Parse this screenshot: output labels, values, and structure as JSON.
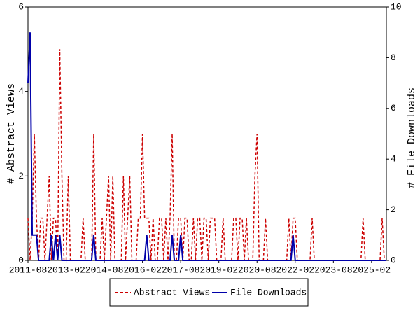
{
  "chart_data": {
    "type": "line",
    "categories": [
      "2011-08",
      "2011-09",
      "2011-10",
      "2011-11",
      "2011-12",
      "2012-01",
      "2012-02",
      "2012-03",
      "2012-04",
      "2012-05",
      "2012-06",
      "2012-07",
      "2012-08",
      "2012-09",
      "2012-10",
      "2012-11",
      "2012-12",
      "2013-01",
      "2013-02",
      "2013-03",
      "2013-04",
      "2013-05",
      "2013-06",
      "2013-07",
      "2013-08",
      "2013-09",
      "2013-10",
      "2013-11",
      "2013-12",
      "2014-01",
      "2014-02",
      "2014-03",
      "2014-04",
      "2014-05",
      "2014-06",
      "2014-07",
      "2014-08",
      "2014-09",
      "2014-10",
      "2014-11",
      "2014-12",
      "2015-01",
      "2015-02",
      "2015-03",
      "2015-04",
      "2015-05",
      "2015-06",
      "2015-07",
      "2015-08",
      "2015-09",
      "2015-10",
      "2015-11",
      "2015-12",
      "2016-01",
      "2016-02",
      "2016-03",
      "2016-04",
      "2016-05",
      "2016-06",
      "2016-07",
      "2016-08",
      "2016-09",
      "2016-10",
      "2016-11",
      "2016-12",
      "2017-01",
      "2017-02",
      "2017-03",
      "2017-04",
      "2017-05",
      "2017-06",
      "2017-07",
      "2017-08",
      "2017-09",
      "2017-10",
      "2017-11",
      "2017-12",
      "2018-01",
      "2018-02",
      "2018-03",
      "2018-04",
      "2018-05",
      "2018-06",
      "2018-07",
      "2018-08",
      "2018-09",
      "2018-10",
      "2018-11",
      "2018-12",
      "2019-01",
      "2019-02",
      "2019-03",
      "2019-04",
      "2019-05",
      "2019-06",
      "2019-07",
      "2019-08",
      "2019-09",
      "2019-10",
      "2019-11",
      "2019-12",
      "2020-01",
      "2020-02",
      "2020-03",
      "2020-04",
      "2020-05",
      "2020-06",
      "2020-07",
      "2020-08",
      "2020-09",
      "2020-10",
      "2020-11",
      "2020-12",
      "2021-01",
      "2021-02",
      "2021-03",
      "2021-04",
      "2021-05",
      "2021-06",
      "2021-07",
      "2021-08",
      "2021-09",
      "2021-10",
      "2021-11",
      "2021-12",
      "2022-01",
      "2022-02",
      "2022-03",
      "2022-04",
      "2022-05",
      "2022-06",
      "2022-07",
      "2022-08",
      "2022-09",
      "2022-10",
      "2022-11",
      "2022-12",
      "2023-01",
      "2023-02",
      "2023-03",
      "2023-04",
      "2023-05",
      "2023-06",
      "2023-07",
      "2023-08",
      "2023-09",
      "2023-10",
      "2023-11",
      "2023-12",
      "2024-01",
      "2024-02",
      "2024-03",
      "2024-04",
      "2024-05",
      "2024-06",
      "2024-07",
      "2024-08",
      "2024-09",
      "2024-10",
      "2024-11",
      "2024-12",
      "2025-01",
      "2025-02",
      "2025-03",
      "2025-04",
      "2025-05",
      "2025-06",
      "2025-07",
      "2025-08",
      "2025-09"
    ],
    "xticks": [
      "2011-08",
      "2013-02",
      "2014-08",
      "2016-02",
      "2017-08",
      "2019-02",
      "2020-08",
      "2022-02",
      "2023-08",
      "2025-02"
    ],
    "ylabel": "# Abstract Views",
    "y2label": "# File Downloads",
    "ylim": [
      0,
      6
    ],
    "yticks": [
      0,
      2,
      4,
      6
    ],
    "y2lim": [
      0,
      10
    ],
    "y2ticks": [
      0,
      2,
      4,
      6,
      8,
      10
    ],
    "series": [
      {
        "name": "Abstract Views",
        "color": "#cc0000",
        "dashed": true,
        "values": [
          1,
          0,
          1,
          3,
          1,
          0,
          1,
          1,
          0,
          1,
          2,
          0,
          1,
          1,
          0,
          5,
          2,
          0,
          0,
          2,
          0,
          0,
          0,
          0,
          0,
          0,
          1,
          0,
          0,
          0,
          0,
          3,
          0,
          0,
          0,
          1,
          0,
          1,
          2,
          0,
          2,
          0,
          0,
          0,
          0,
          2,
          0,
          1,
          2,
          0,
          0,
          0,
          1,
          1,
          3,
          1,
          1,
          1,
          0,
          1,
          0,
          0,
          1,
          1,
          0,
          1,
          0,
          1,
          3,
          0,
          0,
          1,
          1,
          0,
          1,
          1,
          0,
          0,
          1,
          0,
          1,
          1,
          0,
          1,
          1,
          0,
          1,
          1,
          1,
          0,
          0,
          0,
          1,
          0,
          0,
          0,
          0,
          1,
          1,
          0,
          1,
          1,
          0,
          1,
          0,
          0,
          0,
          2,
          3,
          0,
          0,
          0,
          1,
          0,
          0,
          0,
          0,
          0,
          0,
          0,
          0,
          0,
          0,
          1,
          0,
          1,
          1,
          0,
          0,
          0,
          0,
          0,
          0,
          0,
          1,
          0,
          0,
          0,
          0,
          0,
          0,
          0,
          0,
          0,
          0,
          0,
          0,
          0,
          0,
          0,
          0,
          0,
          0,
          0,
          0,
          0,
          0,
          0,
          1,
          0,
          0,
          0,
          0,
          0,
          0,
          0,
          0,
          1,
          0,
          0
        ]
      },
      {
        "name": "File Downloads",
        "color": "#0000aa",
        "dashed": false,
        "axis": "y2",
        "values": [
          7,
          9,
          1,
          1,
          1,
          0,
          0,
          0,
          0,
          0,
          0,
          1,
          0,
          1,
          0,
          1,
          0,
          0,
          0,
          0,
          0,
          0,
          0,
          0,
          0,
          0,
          0,
          0,
          0,
          0,
          0,
          1,
          0,
          0,
          0,
          0,
          0,
          0,
          0,
          0,
          0,
          0,
          0,
          0,
          0,
          0,
          0,
          0,
          0,
          0,
          0,
          0,
          0,
          0,
          0,
          0,
          1,
          0,
          0,
          0,
          0,
          0,
          0,
          0,
          0,
          0,
          0,
          0,
          1,
          0,
          0,
          0,
          1,
          0,
          0,
          0,
          0,
          0,
          0,
          0,
          0,
          0,
          0,
          0,
          0,
          0,
          0,
          0,
          0,
          0,
          0,
          0,
          0,
          0,
          0,
          0,
          0,
          0,
          0,
          0,
          0,
          0,
          0,
          0,
          0,
          0,
          0,
          0,
          0,
          0,
          0,
          0,
          0,
          0,
          0,
          0,
          0,
          0,
          0,
          0,
          0,
          0,
          0,
          0,
          0,
          1,
          0,
          0,
          0,
          0,
          0,
          0,
          0,
          0,
          0,
          0,
          0,
          0,
          0,
          0,
          0,
          0,
          0,
          0,
          0,
          0,
          0,
          0,
          0,
          0,
          0,
          0,
          0,
          0,
          0,
          0,
          0,
          0,
          0,
          0,
          0,
          0,
          0,
          0,
          0,
          0,
          0,
          0,
          0,
          0
        ]
      }
    ]
  }
}
